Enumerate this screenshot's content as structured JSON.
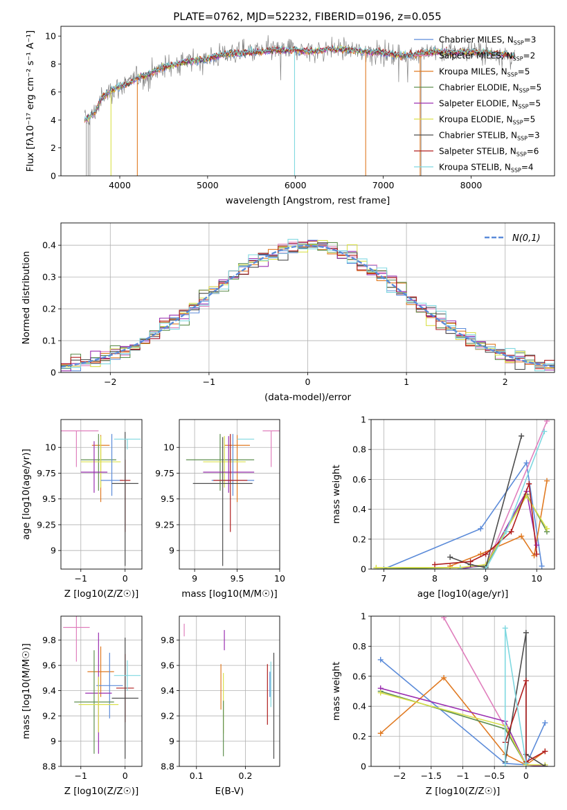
{
  "figure": {
    "title": "PLATE=0762, MJD=52232, FIBERID=0196, z=0.055"
  },
  "colors": {
    "Chabrier MILES": "#5b8bd9",
    "Salpeter MILES": "#e07fbd",
    "Kroupa MILES": "#e07a22",
    "Chabrier ELODIE": "#5f8f4f",
    "Salpeter ELODIE": "#9a2eb0",
    "Kroupa ELODIE": "#d9e04a",
    "Chabrier STELIB": "#4d4d4d",
    "Salpeter STELIB": "#b01e1e",
    "Kroupa STELIB": "#7fd8e0",
    "data": "#808080",
    "normal": "#5b8bd9"
  },
  "chart_data": [
    {
      "id": "spectrum",
      "type": "line",
      "xlabel": "wavelength [Angstrom, rest frame]",
      "ylabel": "Flux [fλ10⁻¹⁷ erg cm⁻² s⁻¹ A⁻¹]",
      "xlim": [
        3330,
        8950
      ],
      "ylim": [
        0,
        10.7
      ],
      "xticks": [
        4000,
        5000,
        6000,
        7000,
        8000
      ],
      "yticks": [
        0,
        2,
        4,
        6,
        8,
        10
      ],
      "grid": false,
      "legend_position": "right",
      "legend": [
        "Chabrier MILES, N$_{SSP}$=3",
        "Salpeter MILES, N$_{SSP}$=2",
        "Kroupa MILES, N$_{SSP}$=5",
        "Chabrier ELODIE, N$_{SSP}$=5",
        "Salpeter ELODIE, N$_{SSP}$=5",
        "Kroupa ELODIE, N$_{SSP}$=5",
        "Chabrier STELIB, N$_{SSP}$=3",
        "Salpeter STELIB, N$_{SSP}$=6",
        "Kroupa STELIB, N$_{SSP}$=4"
      ],
      "continuum": [
        [
          3600,
          4.0
        ],
        [
          3700,
          4.4
        ],
        [
          3800,
          5.6
        ],
        [
          3900,
          6.1
        ],
        [
          4000,
          6.4
        ],
        [
          4100,
          6.6
        ],
        [
          4200,
          7.0
        ],
        [
          4300,
          7.2
        ],
        [
          4400,
          7.5
        ],
        [
          4500,
          7.8
        ],
        [
          4600,
          7.9
        ],
        [
          4700,
          8.1
        ],
        [
          4800,
          8.2
        ],
        [
          4900,
          8.3
        ],
        [
          5000,
          8.4
        ],
        [
          5200,
          8.7
        ],
        [
          5400,
          8.8
        ],
        [
          5600,
          8.9
        ],
        [
          5800,
          9.0
        ],
        [
          6000,
          9.0
        ],
        [
          6200,
          8.9
        ],
        [
          6400,
          9.1
        ],
        [
          6600,
          9.0
        ],
        [
          6800,
          8.9
        ],
        [
          7000,
          8.8
        ],
        [
          7200,
          8.6
        ],
        [
          7400,
          8.7
        ],
        [
          7600,
          8.9
        ],
        [
          7800,
          8.8
        ],
        [
          8000,
          8.9
        ],
        [
          8200,
          8.8
        ],
        [
          8400,
          8.7
        ],
        [
          8500,
          8.5
        ]
      ],
      "model_spikes": [
        {
          "model": "Kroupa MILES",
          "x": 4200
        },
        {
          "model": "Kroupa MILES",
          "x": 6800
        },
        {
          "model": "Kroupa MILES",
          "x": 7420
        },
        {
          "model": "Kroupa ELODIE",
          "x": 3900
        },
        {
          "model": "Kroupa STELIB",
          "x": 5990
        }
      ]
    },
    {
      "id": "residuals",
      "type": "line",
      "xlabel": "(data-model)/error",
      "ylabel": "Normed distribution",
      "xlim": [
        -2.5,
        2.5
      ],
      "ylim": [
        0,
        0.47
      ],
      "xticks": [
        -2,
        -1,
        0,
        1,
        2
      ],
      "yticks": [
        0.0,
        0.1,
        0.2,
        0.3,
        0.4
      ],
      "grid": true,
      "legend_position": "top-right",
      "legend": [
        "N(0,1)"
      ],
      "binwidth": 0.1
    },
    {
      "id": "age_vs_Z",
      "type": "scatter",
      "xlabel": "Z [log10(Z/Z☉)]",
      "ylabel": "age  [log10(age/yr)]",
      "xlim": [
        -1.45,
        0.38
      ],
      "ylim": [
        8.82,
        10.27
      ],
      "xticks": [
        -1,
        0
      ],
      "yticks": [
        9.0,
        9.25,
        9.5,
        9.75,
        10.0
      ],
      "grid": true,
      "points": [
        {
          "model": "Salpeter MILES",
          "x": -1.1,
          "xerr": 0.5,
          "y": 10.16,
          "yerr_lo": 0.35,
          "yerr_hi": 0.0
        },
        {
          "model": "Kroupa MILES",
          "x": -0.55,
          "xerr": 0.2,
          "y": 10.02,
          "yerr_lo": 0.55,
          "yerr_hi": 0.1
        },
        {
          "model": "Chabrier ELODIE",
          "x": -0.6,
          "xerr": 0.4,
          "y": 9.88,
          "yerr_lo": 0.3,
          "yerr_hi": 0.25
        },
        {
          "model": "Kroupa ELODIE",
          "x": -0.55,
          "xerr": 0.45,
          "y": 9.86,
          "yerr_lo": 0.25,
          "yerr_hi": 0.25
        },
        {
          "model": "Salpeter ELODIE",
          "x": -0.7,
          "xerr": 0.3,
          "y": 9.76,
          "yerr_lo": 0.2,
          "yerr_hi": 0.3
        },
        {
          "model": "Chabrier MILES",
          "x": -0.3,
          "xerr": 0.25,
          "y": 9.68,
          "yerr_lo": 0.15,
          "yerr_hi": 0.45
        },
        {
          "model": "Salpeter STELIB",
          "x": 0.0,
          "xerr": 0.12,
          "y": 9.68,
          "yerr_lo": 0.5,
          "yerr_hi": 0.2
        },
        {
          "model": "Chabrier STELIB",
          "x": 0.0,
          "xerr": 0.3,
          "y": 9.65,
          "yerr_lo": 0.8,
          "yerr_hi": 0.5
        },
        {
          "model": "Kroupa STELIB",
          "x": 0.05,
          "xerr": 0.3,
          "y": 10.08,
          "yerr_lo": 0.1,
          "yerr_hi": 0.0
        }
      ]
    },
    {
      "id": "age_vs_mass",
      "type": "scatter",
      "xlabel": "mass [log10(M/M☉)]",
      "ylabel": "",
      "xlim": [
        8.82,
        10.0
      ],
      "ylim": [
        8.82,
        10.27
      ],
      "xticks": [
        9.0,
        9.5,
        10.0
      ],
      "yticks": [
        9.0,
        9.25,
        9.5,
        9.75,
        10.0
      ],
      "grid": true,
      "points": [
        {
          "model": "Salpeter MILES",
          "x": 9.9,
          "xerr": 0.1,
          "y": 10.16,
          "yerr_lo": 0.35,
          "yerr_hi": 0.0
        },
        {
          "model": "Kroupa MILES",
          "x": 9.5,
          "xerr": 0.15,
          "y": 10.02,
          "yerr_lo": 0.55,
          "yerr_hi": 0.1
        },
        {
          "model": "Chabrier ELODIE",
          "x": 9.3,
          "xerr": 0.4,
          "y": 9.88,
          "yerr_lo": 0.3,
          "yerr_hi": 0.25
        },
        {
          "model": "Kroupa ELODIE",
          "x": 9.35,
          "xerr": 0.25,
          "y": 9.86,
          "yerr_lo": 0.25,
          "yerr_hi": 0.25
        },
        {
          "model": "Salpeter ELODIE",
          "x": 9.4,
          "xerr": 0.3,
          "y": 9.76,
          "yerr_lo": 0.2,
          "yerr_hi": 0.35
        },
        {
          "model": "Chabrier MILES",
          "x": 9.45,
          "xerr": 0.25,
          "y": 9.68,
          "yerr_lo": 0.15,
          "yerr_hi": 0.45
        },
        {
          "model": "Salpeter STELIB",
          "x": 9.42,
          "xerr": 0.2,
          "y": 9.68,
          "yerr_lo": 0.5,
          "yerr_hi": 0.45
        },
        {
          "model": "Chabrier STELIB",
          "x": 9.33,
          "xerr": 0.35,
          "y": 9.65,
          "yerr_lo": 0.8,
          "yerr_hi": 0.45
        },
        {
          "model": "Kroupa STELIB",
          "x": 9.6,
          "xerr": 0.1,
          "y": 10.08,
          "yerr_lo": 0.0,
          "yerr_hi": 0.0
        }
      ]
    },
    {
      "id": "massweight_vs_age",
      "type": "line",
      "xlabel": "age  [log10(age/yr)]",
      "ylabel": "mass weight",
      "xlim": [
        6.75,
        10.35
      ],
      "ylim": [
        0,
        1.0
      ],
      "xticks": [
        7,
        8,
        9,
        10
      ],
      "yticks": [
        0.0,
        0.2,
        0.4,
        0.6,
        0.8,
        1.0
      ],
      "grid": true,
      "series": [
        {
          "model": "Chabrier MILES",
          "x": [
            7.0,
            8.9,
            9.8,
            10.1
          ],
          "y": [
            0.0,
            0.27,
            0.71,
            0.02
          ]
        },
        {
          "model": "Salpeter MILES",
          "x": [
            9.0,
            10.2
          ],
          "y": [
            0.01,
            0.99
          ]
        },
        {
          "model": "Kroupa MILES",
          "x": [
            8.3,
            8.9,
            9.7,
            9.95,
            10.2
          ],
          "y": [
            0.02,
            0.1,
            0.22,
            0.09,
            0.59
          ]
        },
        {
          "model": "Chabrier ELODIE",
          "x": [
            6.85,
            8.5,
            9.0,
            9.8,
            10.2
          ],
          "y": [
            0.0,
            0.01,
            0.02,
            0.5,
            0.25
          ]
        },
        {
          "model": "Salpeter ELODIE",
          "x": [
            8.5,
            9.0,
            9.8,
            10.0
          ],
          "y": [
            0.0,
            0.03,
            0.52,
            0.16
          ]
        },
        {
          "model": "Kroupa ELODIE",
          "x": [
            6.85,
            8.5,
            9.0,
            9.8,
            10.2
          ],
          "y": [
            0.01,
            0.01,
            0.03,
            0.49,
            0.27
          ]
        },
        {
          "model": "Chabrier STELIB",
          "x": [
            8.3,
            8.7,
            9.0,
            9.7
          ],
          "y": [
            0.08,
            0.03,
            0.01,
            0.89
          ]
        },
        {
          "model": "Salpeter STELIB",
          "x": [
            8.0,
            8.7,
            9.0,
            9.5,
            9.85,
            10.0
          ],
          "y": [
            0.03,
            0.05,
            0.1,
            0.25,
            0.57,
            0.1
          ]
        },
        {
          "model": "Kroupa STELIB",
          "x": [
            8.5,
            9.0,
            9.4,
            10.15
          ],
          "y": [
            0.0,
            0.0,
            0.25,
            0.92
          ]
        }
      ]
    },
    {
      "id": "mass_vs_Z",
      "type": "scatter",
      "xlabel": "Z [log10(Z/Z☉)]",
      "ylabel": "mass [log10(M/M☉)]",
      "xlim": [
        -1.45,
        0.38
      ],
      "ylim": [
        8.8,
        9.99
      ],
      "xticks": [
        -1,
        0
      ],
      "yticks": [
        8.8,
        9.0,
        9.2,
        9.4,
        9.6,
        9.8
      ],
      "grid": true,
      "points": [
        {
          "model": "Salpeter MILES",
          "x": -1.1,
          "xerr": 0.3,
          "y": 9.9,
          "yerr": 0.27
        },
        {
          "model": "Kroupa MILES",
          "x": -0.55,
          "xerr": 0.3,
          "y": 9.55,
          "yerr": 0.2
        },
        {
          "model": "Chabrier MILES",
          "x": -0.35,
          "xerr": 0.3,
          "y": 9.44,
          "yerr": 0.26
        },
        {
          "model": "Salpeter ELODIE",
          "x": -0.6,
          "xerr": 0.3,
          "y": 9.38,
          "yerr": 0.48
        },
        {
          "model": "Chabrier ELODIE",
          "x": -0.7,
          "xerr": 0.45,
          "y": 9.31,
          "yerr": 0.41
        },
        {
          "model": "Kroupa ELODIE",
          "x": -0.6,
          "xerr": 0.45,
          "y": 9.29,
          "yerr": 0.22
        },
        {
          "model": "Salpeter STELIB",
          "x": 0.0,
          "xerr": 0.2,
          "y": 9.42,
          "yerr": 0.27
        },
        {
          "model": "Chabrier STELIB",
          "x": 0.0,
          "xerr": 0.3,
          "y": 9.34,
          "yerr": 0.48
        },
        {
          "model": "Kroupa STELIB",
          "x": 0.05,
          "xerr": 0.3,
          "y": 9.52,
          "yerr": 0.12
        }
      ]
    },
    {
      "id": "mass_vs_EBV",
      "type": "scatter",
      "xlabel": "E(B-V)",
      "ylabel": "",
      "xlim": [
        0.065,
        0.27
      ],
      "ylim": [
        8.8,
        9.99
      ],
      "xticks": [
        0.1,
        0.2
      ],
      "yticks": [
        8.8,
        9.0,
        9.2,
        9.4,
        9.6,
        9.8
      ],
      "grid": true,
      "points": [
        {
          "model": "Salpeter MILES",
          "x": 0.075,
          "y": 9.88,
          "yerr": 0.05
        },
        {
          "model": "Kroupa MILES",
          "x": 0.15,
          "y": 9.43,
          "yerr": 0.18
        },
        {
          "model": "Kroupa ELODIE",
          "x": 0.155,
          "y": 9.3,
          "yerr": 0.24
        },
        {
          "model": "Salpeter ELODIE",
          "x": 0.157,
          "y": 9.8,
          "yerr": 0.08
        },
        {
          "model": "Chabrier ELODIE",
          "x": 0.155,
          "y": 9.1,
          "yerr": 0.22
        },
        {
          "model": "Salpeter STELIB",
          "x": 0.245,
          "y": 9.37,
          "yerr": 0.24
        },
        {
          "model": "Chabrier MILES",
          "x": 0.25,
          "y": 9.45,
          "yerr": 0.1
        },
        {
          "model": "Kroupa STELIB",
          "x": 0.252,
          "y": 9.45,
          "yerr": 0.18
        },
        {
          "model": "Chabrier STELIB",
          "x": 0.258,
          "y": 9.28,
          "yerr": 0.42
        }
      ]
    },
    {
      "id": "massweight_vs_Z",
      "type": "line",
      "xlabel": "Z [log10(Z/Z☉)]",
      "ylabel": "mass weight",
      "xlim": [
        -2.45,
        0.45
      ],
      "ylim": [
        0,
        1.0
      ],
      "xticks": [
        -2.0,
        -1.5,
        -1.0,
        -0.5,
        0.0
      ],
      "yticks": [
        0.0,
        0.2,
        0.4,
        0.6,
        0.8,
        1.0
      ],
      "grid": true,
      "series": [
        {
          "model": "Chabrier MILES",
          "x": [
            -2.3,
            -0.33,
            0.0,
            0.3
          ],
          "y": [
            0.71,
            0.02,
            0.01,
            0.29
          ]
        },
        {
          "model": "Salpeter MILES",
          "x": [
            -1.3,
            0.0,
            0.3
          ],
          "y": [
            0.99,
            0.01,
            0.0
          ]
        },
        {
          "model": "Kroupa MILES",
          "x": [
            -2.3,
            -1.3,
            -0.33,
            0.0,
            0.3
          ],
          "y": [
            0.22,
            0.59,
            0.08,
            0.01,
            0.1
          ]
        },
        {
          "model": "Chabrier ELODIE",
          "x": [
            -2.3,
            -0.33,
            0.0,
            0.3
          ],
          "y": [
            0.5,
            0.25,
            0.01,
            0.01
          ]
        },
        {
          "model": "Salpeter ELODIE",
          "x": [
            -2.3,
            -0.33,
            0.0,
            0.3
          ],
          "y": [
            0.52,
            0.3,
            0.01,
            0.0
          ]
        },
        {
          "model": "Kroupa ELODIE",
          "x": [
            -2.3,
            -0.33,
            0.0,
            0.3
          ],
          "y": [
            0.49,
            0.27,
            0.01,
            0.01
          ]
        },
        {
          "model": "Chabrier STELIB",
          "x": [
            -0.33,
            0.0,
            0.0,
            0.3
          ],
          "y": [
            0.03,
            0.89,
            0.08,
            0.0
          ]
        },
        {
          "model": "Salpeter STELIB",
          "x": [
            -0.33,
            0.0,
            0.0,
            0.3
          ],
          "y": [
            0.16,
            0.57,
            0.03,
            0.1
          ]
        },
        {
          "model": "Kroupa STELIB",
          "x": [
            -0.33,
            -0.33,
            0.0
          ],
          "y": [
            0.0,
            0.92,
            0.02
          ]
        }
      ]
    }
  ]
}
